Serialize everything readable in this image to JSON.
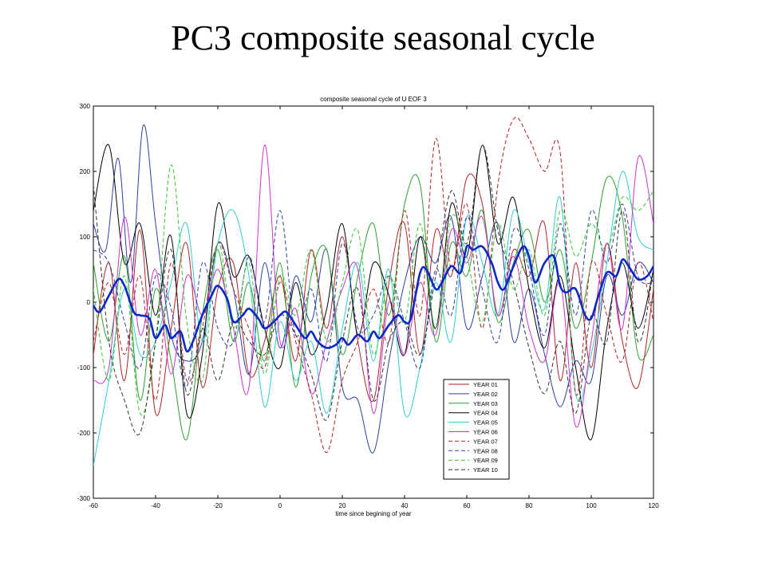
{
  "slide": {
    "title": "PC3 composite seasonal cycle"
  },
  "chart_data": {
    "type": "line",
    "title": "composite seasonal cycle of U EOF 3",
    "xlabel": "time since begining of year",
    "ylabel": "",
    "xlim": [
      -60,
      120
    ],
    "ylim": [
      -300,
      300
    ],
    "xticks": [
      -60,
      -40,
      -20,
      0,
      20,
      40,
      60,
      80,
      100,
      120
    ],
    "yticks": [
      -300,
      -200,
      -100,
      0,
      100,
      200,
      300
    ],
    "grid": false,
    "legend_position": "lower-right",
    "series": [
      {
        "name": "YEAR 01",
        "color": "#b22222",
        "dash": "solid",
        "width": 1,
        "in_legend": true,
        "x": [
          -60,
          -55,
          -50,
          -45,
          -40,
          -35,
          -30,
          -25,
          -20,
          -15,
          -10,
          -5,
          0,
          5,
          10,
          15,
          20,
          25,
          30,
          35,
          40,
          45,
          50,
          55,
          60,
          65,
          70,
          75,
          80,
          85,
          90,
          95,
          100,
          105,
          110,
          115,
          120
        ],
        "y": [
          -80,
          60,
          -120,
          110,
          -170,
          -40,
          90,
          -130,
          20,
          60,
          -110,
          -60,
          40,
          -90,
          80,
          -40,
          100,
          -60,
          -150,
          30,
          120,
          -80,
          110,
          40,
          190,
          150,
          -20,
          80,
          40,
          120,
          -120,
          60,
          -100,
          90,
          -60,
          -130,
          20
        ]
      },
      {
        "name": "YEAR 02",
        "color": "#2b3ea6",
        "dash": "solid",
        "width": 1,
        "in_legend": true,
        "x": [
          -60,
          -56,
          -52,
          -48,
          -44,
          -40,
          -35,
          -30,
          -25,
          -20,
          -15,
          -10,
          -5,
          0,
          5,
          10,
          15,
          20,
          25,
          30,
          35,
          40,
          45,
          50,
          55,
          60,
          65,
          70,
          75,
          80,
          85,
          90,
          95,
          100,
          105,
          110,
          115,
          120
        ],
        "y": [
          120,
          80,
          220,
          30,
          270,
          120,
          -50,
          -90,
          -60,
          90,
          20,
          -110,
          60,
          -70,
          40,
          -30,
          80,
          -130,
          -150,
          -230,
          -90,
          30,
          100,
          60,
          130,
          -40,
          40,
          120,
          -60,
          20,
          -80,
          -160,
          -90,
          -120,
          40,
          -20,
          60,
          30
        ]
      },
      {
        "name": "YEAR 03",
        "color": "#2ca02c",
        "dash": "solid",
        "width": 1,
        "in_legend": true,
        "x": [
          -60,
          -55,
          -50,
          -45,
          -40,
          -35,
          -30,
          -25,
          -20,
          -15,
          -10,
          -5,
          0,
          5,
          10,
          15,
          20,
          25,
          30,
          35,
          40,
          45,
          50,
          55,
          60,
          65,
          70,
          75,
          80,
          85,
          90,
          95,
          100,
          105,
          110,
          115,
          120
        ],
        "y": [
          60,
          -60,
          70,
          -150,
          20,
          -90,
          -210,
          -20,
          80,
          -60,
          30,
          -90,
          60,
          -130,
          40,
          80,
          -80,
          40,
          120,
          -20,
          150,
          180,
          -60,
          90,
          40,
          140,
          -30,
          60,
          110,
          0,
          80,
          -40,
          60,
          190,
          130,
          -80,
          -50
        ]
      },
      {
        "name": "YEAR 04",
        "color": "#000000",
        "dash": "solid",
        "width": 1,
        "in_legend": true,
        "x": [
          -60,
          -55,
          -50,
          -45,
          -40,
          -35,
          -30,
          -25,
          -20,
          -15,
          -10,
          -5,
          0,
          5,
          10,
          15,
          20,
          25,
          30,
          35,
          40,
          45,
          50,
          55,
          60,
          65,
          70,
          75,
          80,
          85,
          90,
          95,
          100,
          105,
          110,
          115,
          120
        ],
        "y": [
          140,
          240,
          60,
          120,
          -20,
          100,
          -170,
          -80,
          150,
          40,
          70,
          -40,
          -100,
          30,
          -80,
          -10,
          120,
          -50,
          60,
          10,
          -80,
          100,
          -40,
          150,
          70,
          240,
          90,
          160,
          20,
          -70,
          40,
          -100,
          -210,
          -40,
          60,
          -40,
          50
        ]
      },
      {
        "name": "YEAR 05",
        "color": "#33cccc",
        "dash": "solid",
        "width": 1,
        "in_legend": true,
        "x": [
          -60,
          -55,
          -50,
          -45,
          -40,
          -35,
          -30,
          -25,
          -20,
          -15,
          -10,
          -5,
          0,
          5,
          10,
          15,
          20,
          25,
          30,
          35,
          40,
          45,
          50,
          55,
          60,
          65,
          70,
          75,
          80,
          85,
          90,
          95,
          100,
          105,
          110,
          115,
          120
        ],
        "y": [
          -250,
          -120,
          20,
          -80,
          -60,
          30,
          120,
          -60,
          90,
          140,
          40,
          -160,
          -30,
          -120,
          -60,
          -170,
          -40,
          60,
          -90,
          50,
          -170,
          -100,
          30,
          -60,
          130,
          60,
          -20,
          140,
          60,
          -10,
          160,
          -140,
          -80,
          60,
          200,
          100,
          80
        ]
      },
      {
        "name": "YEAR 06",
        "color": "#cc33cc",
        "dash": "solid",
        "width": 1,
        "in_legend": true,
        "x": [
          -60,
          -55,
          -50,
          -45,
          -40,
          -35,
          -30,
          -25,
          -20,
          -15,
          -10,
          -5,
          0,
          5,
          10,
          15,
          20,
          25,
          30,
          35,
          40,
          45,
          50,
          55,
          60,
          65,
          70,
          75,
          80,
          85,
          90,
          95,
          100,
          105,
          110,
          115,
          120
        ],
        "y": [
          -120,
          -100,
          130,
          -50,
          50,
          -110,
          40,
          -20,
          50,
          -40,
          -130,
          240,
          -60,
          -10,
          -140,
          -60,
          20,
          50,
          -170,
          0,
          -80,
          30,
          -50,
          110,
          60,
          130,
          -20,
          70,
          -40,
          -90,
          30,
          -190,
          -60,
          90,
          -40,
          220,
          120
        ]
      },
      {
        "name": "YEAR 07",
        "color": "#b22222",
        "dash": "dashed",
        "width": 1,
        "in_legend": true,
        "x": [
          -60,
          -55,
          -50,
          -45,
          -40,
          -35,
          -30,
          -25,
          -20,
          -15,
          -10,
          -5,
          0,
          5,
          10,
          15,
          20,
          25,
          30,
          35,
          40,
          45,
          50,
          55,
          60,
          65,
          70,
          75,
          80,
          85,
          90,
          95,
          100,
          105,
          110,
          115,
          120
        ],
        "y": [
          -60,
          30,
          -80,
          40,
          -150,
          60,
          -120,
          -40,
          90,
          20,
          -40,
          -100,
          30,
          -60,
          -140,
          -230,
          -120,
          -60,
          20,
          -60,
          140,
          -20,
          250,
          50,
          150,
          -40,
          180,
          280,
          250,
          200,
          230,
          -140,
          60,
          -20,
          -90,
          60,
          -30
        ]
      },
      {
        "name": "YEAR 08",
        "color": "#2b3ea6",
        "dash": "dashed",
        "width": 1,
        "in_legend": true,
        "x": [
          -60,
          -55,
          -50,
          -45,
          -40,
          -35,
          -30,
          -25,
          -20,
          -15,
          -10,
          -5,
          0,
          5,
          10,
          15,
          20,
          25,
          30,
          35,
          40,
          45,
          50,
          55,
          60,
          65,
          70,
          75,
          80,
          85,
          90,
          95,
          100,
          105,
          110,
          115,
          120
        ],
        "y": [
          80,
          60,
          -30,
          -100,
          40,
          -10,
          -130,
          60,
          -40,
          -60,
          70,
          -30,
          140,
          -50,
          20,
          -90,
          90,
          -40,
          -20,
          40,
          -30,
          -100,
          50,
          -20,
          130,
          20,
          -60,
          110,
          50,
          -50,
          120,
          -20,
          140,
          60,
          150,
          40,
          30
        ]
      },
      {
        "name": "YEAR 09",
        "color": "#33cc33",
        "dash": "dashed",
        "width": 1,
        "in_legend": true,
        "x": [
          -60,
          -55,
          -50,
          -45,
          -40,
          -35,
          -30,
          -25,
          -20,
          -15,
          -10,
          -5,
          0,
          5,
          10,
          15,
          20,
          25,
          30,
          35,
          40,
          45,
          50,
          55,
          60,
          65,
          70,
          75,
          80,
          85,
          90,
          95,
          100,
          105,
          110,
          115,
          120
        ],
        "y": [
          20,
          -120,
          40,
          -170,
          -60,
          210,
          -30,
          -120,
          90,
          -40,
          60,
          -110,
          40,
          -20,
          80,
          -60,
          30,
          110,
          -80,
          40,
          -30,
          120,
          -40,
          130,
          70,
          -30,
          120,
          20,
          80,
          -20,
          140,
          70,
          120,
          80,
          160,
          140,
          170
        ]
      },
      {
        "name": "YEAR 10",
        "color": "#333333",
        "dash": "dashed",
        "width": 1,
        "in_legend": true,
        "x": [
          -60,
          -55,
          -50,
          -45,
          -40,
          -35,
          -30,
          -25,
          -20,
          -15,
          -10,
          -5,
          0,
          5,
          10,
          15,
          20,
          25,
          30,
          35,
          40,
          45,
          50,
          55,
          60,
          65,
          70,
          75,
          80,
          85,
          90,
          95,
          100,
          105,
          110,
          115,
          120
        ],
        "y": [
          180,
          -60,
          -150,
          -200,
          -60,
          80,
          -140,
          -40,
          -120,
          -30,
          -60,
          -80,
          -20,
          -50,
          -110,
          -180,
          -60,
          20,
          -150,
          -60,
          -30,
          -80,
          40,
          170,
          90,
          240,
          110,
          30,
          -70,
          -140,
          -60,
          -170,
          -20,
          -60,
          140,
          -60,
          50
        ]
      },
      {
        "name": "",
        "color": "#0a28c8",
        "dash": "solid",
        "width": 2.6,
        "in_legend": false,
        "x": [
          -60,
          -58,
          -55,
          -52,
          -50,
          -47,
          -45,
          -42,
          -40,
          -37,
          -35,
          -32,
          -30,
          -28,
          -25,
          -22,
          -20,
          -17,
          -15,
          -12,
          -10,
          -7,
          -5,
          -2,
          0,
          2,
          5,
          8,
          10,
          12,
          15,
          18,
          20,
          22,
          25,
          28,
          30,
          32,
          35,
          38,
          40,
          42,
          45,
          47,
          50,
          52,
          55,
          58,
          60,
          62,
          65,
          68,
          70,
          72,
          75,
          78,
          80,
          82,
          85,
          88,
          90,
          92,
          95,
          98,
          100,
          102,
          105,
          108,
          110,
          112,
          115,
          118,
          120
        ],
        "y": [
          -5,
          -15,
          10,
          35,
          25,
          -15,
          -20,
          -25,
          -55,
          -35,
          -55,
          -45,
          -75,
          -60,
          -20,
          10,
          25,
          5,
          -30,
          -20,
          -10,
          -25,
          -40,
          -30,
          -20,
          -15,
          -35,
          -55,
          -45,
          -60,
          -70,
          -65,
          -55,
          -65,
          -50,
          -60,
          -45,
          -55,
          -35,
          -20,
          -30,
          -25,
          45,
          50,
          20,
          30,
          55,
          45,
          85,
          80,
          85,
          60,
          30,
          20,
          55,
          85,
          70,
          30,
          60,
          70,
          25,
          15,
          20,
          -20,
          -25,
          5,
          45,
          40,
          65,
          55,
          35,
          40,
          55
        ]
      }
    ]
  }
}
